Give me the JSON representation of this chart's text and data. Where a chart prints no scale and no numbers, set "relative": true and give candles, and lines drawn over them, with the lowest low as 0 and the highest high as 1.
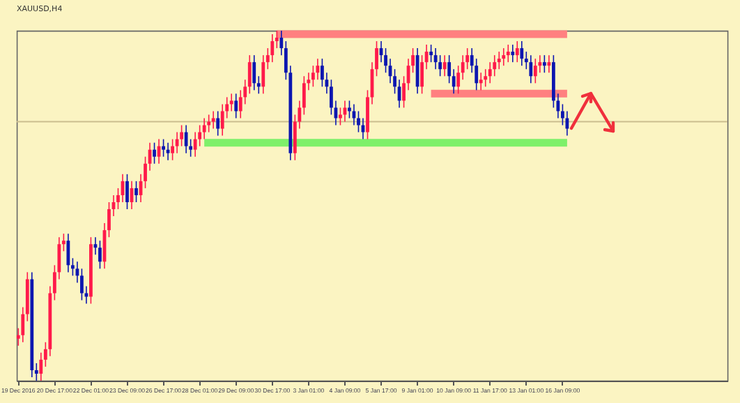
{
  "chart_data": {
    "type": "candlestick",
    "title": "XAUUSD,H4",
    "relative": true,
    "categories": [
      "19 Dec 2016",
      null,
      null,
      null,
      null,
      null,
      null,
      null,
      "20 Dec 17:00",
      null,
      null,
      null,
      null,
      null,
      null,
      null,
      "22 Dec 01:00",
      null,
      null,
      null,
      null,
      null,
      null,
      null,
      "23 Dec 09:00",
      null,
      null,
      null,
      null,
      null,
      null,
      null,
      "26 Dec 17:00",
      null,
      null,
      null,
      null,
      null,
      null,
      null,
      "28 Dec 01:00",
      null,
      null,
      null,
      null,
      null,
      null,
      null,
      "29 Dec 09:00",
      null,
      null,
      null,
      null,
      null,
      null,
      null,
      "30 Dec 17:00",
      null,
      null,
      null,
      null,
      null,
      null,
      null,
      "3 Jan 01:00",
      null,
      null,
      null,
      null,
      null,
      null,
      null,
      "4 Jan 09:00",
      null,
      null,
      null,
      null,
      null,
      null,
      null,
      "5 Jan 17:00",
      null,
      null,
      null,
      null,
      null,
      null,
      null,
      "9 Jan 01:00",
      null,
      null,
      null,
      null,
      null,
      null,
      null,
      "10 Jan 09:00",
      null,
      null,
      null,
      null,
      null,
      null,
      null,
      "11 Jan 17:00",
      null,
      null,
      null,
      null,
      null,
      null,
      null,
      "13 Jan 01:00",
      null,
      null,
      null,
      null,
      null,
      null,
      null,
      "16 Jan 09:00",
      null
    ],
    "ohlc": [
      [
        0.12,
        0.15,
        0.1,
        0.13
      ],
      [
        0.13,
        0.21,
        0.11,
        0.19
      ],
      [
        0.19,
        0.31,
        0.17,
        0.29
      ],
      [
        0.29,
        0.31,
        0.01,
        0.03
      ],
      [
        0.03,
        0.05,
        0.0,
        0.02
      ],
      [
        0.02,
        0.08,
        0.0,
        0.06
      ],
      [
        0.06,
        0.11,
        0.04,
        0.09
      ],
      [
        0.09,
        0.27,
        0.07,
        0.25
      ],
      [
        0.25,
        0.33,
        0.23,
        0.31
      ],
      [
        0.31,
        0.41,
        0.29,
        0.39
      ],
      [
        0.39,
        0.42,
        0.37,
        0.4
      ],
      [
        0.4,
        0.42,
        0.31,
        0.33
      ],
      [
        0.33,
        0.35,
        0.3,
        0.32
      ],
      [
        0.32,
        0.34,
        0.28,
        0.3
      ],
      [
        0.3,
        0.32,
        0.23,
        0.25
      ],
      [
        0.25,
        0.27,
        0.22,
        0.24
      ],
      [
        0.24,
        0.41,
        0.22,
        0.39
      ],
      [
        0.39,
        0.41,
        0.36,
        0.38
      ],
      [
        0.38,
        0.4,
        0.32,
        0.34
      ],
      [
        0.34,
        0.45,
        0.32,
        0.43
      ],
      [
        0.43,
        0.51,
        0.41,
        0.49
      ],
      [
        0.49,
        0.53,
        0.47,
        0.51
      ],
      [
        0.51,
        0.55,
        0.49,
        0.53
      ],
      [
        0.53,
        0.59,
        0.51,
        0.57
      ],
      [
        0.57,
        0.59,
        0.49,
        0.51
      ],
      [
        0.51,
        0.57,
        0.49,
        0.55
      ],
      [
        0.55,
        0.57,
        0.51,
        0.53
      ],
      [
        0.53,
        0.59,
        0.51,
        0.57
      ],
      [
        0.57,
        0.64,
        0.55,
        0.62
      ],
      [
        0.62,
        0.68,
        0.6,
        0.66
      ],
      [
        0.66,
        0.68,
        0.62,
        0.64
      ],
      [
        0.64,
        0.69,
        0.62,
        0.67
      ],
      [
        0.67,
        0.69,
        0.64,
        0.66
      ],
      [
        0.66,
        0.68,
        0.63,
        0.65
      ],
      [
        0.65,
        0.69,
        0.63,
        0.67
      ],
      [
        0.67,
        0.71,
        0.65,
        0.69
      ],
      [
        0.69,
        0.73,
        0.67,
        0.71
      ],
      [
        0.71,
        0.73,
        0.65,
        0.67
      ],
      [
        0.67,
        0.69,
        0.64,
        0.66
      ],
      [
        0.66,
        0.71,
        0.64,
        0.69
      ],
      [
        0.69,
        0.73,
        0.67,
        0.71
      ],
      [
        0.71,
        0.75,
        0.69,
        0.73
      ],
      [
        0.73,
        0.76,
        0.71,
        0.74
      ],
      [
        0.74,
        0.77,
        0.72,
        0.75
      ],
      [
        0.75,
        0.77,
        0.7,
        0.72
      ],
      [
        0.72,
        0.79,
        0.7,
        0.77
      ],
      [
        0.77,
        0.81,
        0.75,
        0.79
      ],
      [
        0.79,
        0.82,
        0.77,
        0.8
      ],
      [
        0.8,
        0.82,
        0.75,
        0.77
      ],
      [
        0.77,
        0.83,
        0.75,
        0.81
      ],
      [
        0.81,
        0.86,
        0.79,
        0.84
      ],
      [
        0.84,
        0.93,
        0.82,
        0.91
      ],
      [
        0.91,
        0.93,
        0.83,
        0.85
      ],
      [
        0.85,
        0.87,
        0.82,
        0.84
      ],
      [
        0.84,
        0.93,
        0.82,
        0.91
      ],
      [
        0.91,
        0.95,
        0.89,
        0.93
      ],
      [
        0.93,
        0.99,
        0.91,
        0.97
      ],
      [
        0.97,
        1.0,
        0.95,
        0.98
      ],
      [
        0.98,
        1.0,
        0.93,
        0.95
      ],
      [
        0.95,
        0.97,
        0.86,
        0.88
      ],
      [
        0.88,
        0.9,
        0.63,
        0.65
      ],
      [
        0.65,
        0.76,
        0.63,
        0.74
      ],
      [
        0.74,
        0.8,
        0.72,
        0.78
      ],
      [
        0.78,
        0.87,
        0.76,
        0.85
      ],
      [
        0.85,
        0.88,
        0.83,
        0.86
      ],
      [
        0.86,
        0.9,
        0.84,
        0.88
      ],
      [
        0.88,
        0.92,
        0.86,
        0.9
      ],
      [
        0.9,
        0.92,
        0.84,
        0.86
      ],
      [
        0.86,
        0.88,
        0.82,
        0.84
      ],
      [
        0.84,
        0.86,
        0.76,
        0.78
      ],
      [
        0.78,
        0.8,
        0.73,
        0.75
      ],
      [
        0.75,
        0.78,
        0.73,
        0.76
      ],
      [
        0.76,
        0.8,
        0.74,
        0.78
      ],
      [
        0.78,
        0.8,
        0.75,
        0.77
      ],
      [
        0.77,
        0.79,
        0.73,
        0.75
      ],
      [
        0.75,
        0.77,
        0.71,
        0.73
      ],
      [
        0.73,
        0.75,
        0.69,
        0.71
      ],
      [
        0.71,
        0.83,
        0.69,
        0.81
      ],
      [
        0.81,
        0.91,
        0.79,
        0.89
      ],
      [
        0.89,
        0.97,
        0.87,
        0.95
      ],
      [
        0.95,
        0.97,
        0.91,
        0.93
      ],
      [
        0.93,
        0.95,
        0.88,
        0.9
      ],
      [
        0.9,
        0.92,
        0.85,
        0.87
      ],
      [
        0.87,
        0.89,
        0.82,
        0.84
      ],
      [
        0.84,
        0.86,
        0.78,
        0.8
      ],
      [
        0.8,
        0.87,
        0.78,
        0.85
      ],
      [
        0.85,
        0.92,
        0.83,
        0.9
      ],
      [
        0.9,
        0.95,
        0.88,
        0.93
      ],
      [
        0.93,
        0.95,
        0.82,
        0.84
      ],
      [
        0.84,
        0.93,
        0.82,
        0.91
      ],
      [
        0.91,
        0.96,
        0.89,
        0.94
      ],
      [
        0.94,
        0.96,
        0.91,
        0.93
      ],
      [
        0.93,
        0.95,
        0.89,
        0.91
      ],
      [
        0.91,
        0.93,
        0.87,
        0.89
      ],
      [
        0.89,
        0.93,
        0.87,
        0.91
      ],
      [
        0.91,
        0.93,
        0.85,
        0.87
      ],
      [
        0.87,
        0.89,
        0.82,
        0.84
      ],
      [
        0.84,
        0.9,
        0.82,
        0.88
      ],
      [
        0.88,
        0.93,
        0.86,
        0.91
      ],
      [
        0.91,
        0.95,
        0.89,
        0.93
      ],
      [
        0.93,
        0.95,
        0.88,
        0.9
      ],
      [
        0.9,
        0.92,
        0.83,
        0.85
      ],
      [
        0.85,
        0.88,
        0.83,
        0.86
      ],
      [
        0.86,
        0.89,
        0.84,
        0.87
      ],
      [
        0.87,
        0.91,
        0.85,
        0.89
      ],
      [
        0.89,
        0.93,
        0.87,
        0.91
      ],
      [
        0.91,
        0.94,
        0.89,
        0.92
      ],
      [
        0.92,
        0.95,
        0.9,
        0.93
      ],
      [
        0.93,
        0.96,
        0.91,
        0.94
      ],
      [
        0.94,
        0.96,
        0.91,
        0.93
      ],
      [
        0.93,
        0.97,
        0.91,
        0.95
      ],
      [
        0.95,
        0.97,
        0.9,
        0.92
      ],
      [
        0.92,
        0.94,
        0.89,
        0.91
      ],
      [
        0.91,
        0.93,
        0.85,
        0.87
      ],
      [
        0.87,
        0.92,
        0.85,
        0.9
      ],
      [
        0.9,
        0.93,
        0.88,
        0.91
      ],
      [
        0.91,
        0.93,
        0.88,
        0.9
      ],
      [
        0.9,
        0.93,
        0.88,
        0.91
      ],
      [
        0.91,
        0.93,
        0.78,
        0.8
      ],
      [
        0.8,
        0.82,
        0.75,
        0.77
      ],
      [
        0.77,
        0.79,
        0.73,
        0.75
      ],
      [
        0.75,
        0.77,
        0.7,
        0.72
      ]
    ],
    "colors": [
      "#ff1a4a",
      "#ff1a4a",
      "#ff1a4a",
      "#0c16b0",
      "#0c16b0",
      "#ff1a4a",
      "#ff1a4a",
      "#ff1a4a",
      "#ff1a4a",
      "#ff1a4a",
      "#ff1a4a",
      "#0c16b0",
      "#0c16b0",
      "#0c16b0",
      "#0c16b0",
      "#0c16b0",
      "#ff1a4a",
      "#0c16b0",
      "#0c16b0",
      "#ff1a4a",
      "#ff1a4a",
      "#ff1a4a",
      "#ff1a4a",
      "#ff1a4a",
      "#0c16b0",
      "#ff1a4a",
      "#0c16b0",
      "#ff1a4a",
      "#ff1a4a",
      "#ff1a4a",
      "#0c16b0",
      "#ff1a4a",
      "#0c16b0",
      "#0c16b0",
      "#ff1a4a",
      "#ff1a4a",
      "#ff1a4a",
      "#0c16b0",
      "#0c16b0",
      "#ff1a4a",
      "#ff1a4a",
      "#ff1a4a",
      "#ff1a4a",
      "#ff1a4a",
      "#0c16b0",
      "#ff1a4a",
      "#ff1a4a",
      "#ff1a4a",
      "#0c16b0",
      "#ff1a4a",
      "#ff1a4a",
      "#ff1a4a",
      "#0c16b0",
      "#0c16b0",
      "#ff1a4a",
      "#ff1a4a",
      "#ff1a4a",
      "#ff1a4a",
      "#0c16b0",
      "#0c16b0",
      "#0c16b0",
      "#ff1a4a",
      "#ff1a4a",
      "#ff1a4a",
      "#ff1a4a",
      "#ff1a4a",
      "#ff1a4a",
      "#0c16b0",
      "#0c16b0",
      "#0c16b0",
      "#0c16b0",
      "#ff1a4a",
      "#ff1a4a",
      "#0c16b0",
      "#0c16b0",
      "#0c16b0",
      "#0c16b0",
      "#ff1a4a",
      "#ff1a4a",
      "#ff1a4a",
      "#0c16b0",
      "#0c16b0",
      "#0c16b0",
      "#0c16b0",
      "#0c16b0",
      "#ff1a4a",
      "#ff1a4a",
      "#ff1a4a",
      "#0c16b0",
      "#ff1a4a",
      "#ff1a4a",
      "#0c16b0",
      "#0c16b0",
      "#0c16b0",
      "#ff1a4a",
      "#0c16b0",
      "#0c16b0",
      "#ff1a4a",
      "#ff1a4a",
      "#ff1a4a",
      "#0c16b0",
      "#0c16b0",
      "#ff1a4a",
      "#ff1a4a",
      "#ff1a4a",
      "#ff1a4a",
      "#ff1a4a",
      "#ff1a4a",
      "#ff1a4a",
      "#0c16b0",
      "#ff1a4a",
      "#0c16b0",
      "#0c16b0",
      "#0c16b0",
      "#ff1a4a",
      "#ff1a4a",
      "#0c16b0",
      "#ff1a4a",
      "#0c16b0",
      "#0c16b0",
      "#0c16b0",
      "#0c16b0"
    ],
    "series": [
      {
        "type": "line",
        "color": "#ff8080",
        "values": [
          null,
          null,
          null,
          null,
          null,
          null,
          null,
          null,
          null,
          null,
          null,
          null,
          null,
          null,
          null,
          null,
          null,
          null,
          null,
          null,
          null,
          null,
          null,
          null,
          null,
          null,
          null,
          null,
          null,
          null,
          null,
          null,
          null,
          null,
          null,
          null,
          null,
          null,
          null,
          null,
          null,
          null,
          null,
          null,
          null,
          null,
          null,
          null,
          null,
          null,
          null,
          null,
          null,
          null,
          null,
          null,
          null,
          0.99,
          0.99,
          0.99,
          0.99,
          0.99,
          0.99,
          0.99,
          0.99,
          0.99,
          0.99,
          0.99,
          0.99,
          0.99,
          0.99,
          0.99,
          0.99,
          0.99,
          0.99,
          0.99,
          0.99,
          0.99,
          0.99,
          0.99,
          0.99,
          0.99,
          0.99,
          0.99,
          0.99,
          0.99,
          0.99,
          0.99,
          0.99,
          0.99,
          0.99,
          0.99,
          0.99,
          0.99,
          0.99,
          0.99,
          0.99,
          0.99,
          0.99,
          0.99,
          0.99,
          0.99,
          0.99,
          0.99,
          0.99,
          0.99,
          0.99,
          0.99,
          0.99,
          0.99,
          0.99,
          0.99,
          0.99,
          0.99,
          0.99,
          0.99,
          0.99,
          0.99,
          0.99,
          0.99,
          0.99,
          0.99
        ]
      },
      {
        "type": "line",
        "color": "#ff8080",
        "values": [
          null,
          null,
          null,
          null,
          null,
          null,
          null,
          null,
          null,
          null,
          null,
          null,
          null,
          null,
          null,
          null,
          null,
          null,
          null,
          null,
          null,
          null,
          null,
          null,
          null,
          null,
          null,
          null,
          null,
          null,
          null,
          null,
          null,
          null,
          null,
          null,
          null,
          null,
          null,
          null,
          null,
          null,
          null,
          null,
          null,
          null,
          null,
          null,
          null,
          null,
          null,
          null,
          null,
          null,
          null,
          null,
          null,
          null,
          null,
          null,
          null,
          null,
          null,
          null,
          null,
          null,
          null,
          null,
          null,
          null,
          null,
          null,
          null,
          null,
          null,
          null,
          null,
          null,
          null,
          null,
          null,
          null,
          null,
          null,
          null,
          null,
          null,
          null,
          null,
          null,
          null,
          0.82,
          0.82,
          0.82,
          0.82,
          0.82,
          0.82,
          0.82,
          0.82,
          0.82,
          0.82,
          0.82,
          0.82,
          0.82,
          0.82,
          0.82,
          0.82,
          0.82,
          0.82,
          0.82,
          0.82,
          0.82,
          0.82,
          0.82,
          0.82,
          0.82,
          0.82,
          0.82,
          0.82,
          0.82,
          0.82,
          0.82
        ]
      },
      {
        "type": "line",
        "color": "#7ef06a",
        "values": [
          null,
          null,
          null,
          null,
          null,
          null,
          null,
          null,
          null,
          null,
          null,
          null,
          null,
          null,
          null,
          null,
          null,
          null,
          null,
          null,
          null,
          null,
          null,
          null,
          null,
          null,
          null,
          null,
          null,
          null,
          null,
          null,
          null,
          null,
          null,
          null,
          null,
          null,
          null,
          null,
          null,
          0.68,
          0.68,
          0.68,
          0.68,
          0.68,
          0.68,
          0.68,
          0.68,
          0.68,
          0.68,
          0.68,
          0.68,
          0.68,
          0.68,
          0.68,
          0.68,
          0.68,
          0.68,
          0.68,
          0.68,
          0.68,
          0.68,
          0.68,
          0.68,
          0.68,
          0.68,
          0.68,
          0.68,
          0.68,
          0.68,
          0.68,
          0.68,
          0.68,
          0.68,
          0.68,
          0.68,
          0.68,
          0.68,
          0.68,
          0.68,
          0.68,
          0.68,
          0.68,
          0.68,
          0.68,
          0.68,
          0.68,
          0.68,
          0.68,
          0.68,
          0.68,
          0.68,
          0.68,
          0.68,
          0.68,
          0.68,
          0.68,
          0.68,
          0.68,
          0.68,
          0.68,
          0.68,
          0.68,
          0.68,
          0.68,
          0.68,
          0.68,
          0.68,
          0.68,
          0.68,
          0.68,
          0.68,
          0.68,
          0.68,
          0.68,
          0.68,
          0.68,
          0.68,
          0.68,
          0.68,
          0.68
        ]
      }
    ],
    "ref_lines": [
      {
        "axis": "y",
        "value": 0.74,
        "color": "#cbbd8e"
      }
    ]
  }
}
